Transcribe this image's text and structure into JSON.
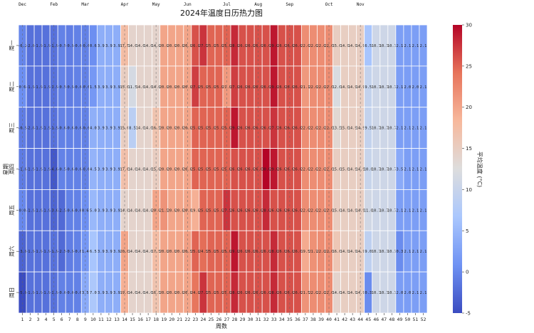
{
  "chart_data": {
    "type": "heatmap",
    "title": "2024年温度日历热力图",
    "xlabel": "周数",
    "ylabel": "星期",
    "colorbar_label": "平均温度 (°C)",
    "colorbar_range": [
      -5,
      30
    ],
    "colorbar_ticks": [
      "-5",
      "0",
      "5",
      "10",
      "15",
      "20",
      "25",
      "30"
    ],
    "colormap": "coolwarm",
    "colormap_stops": [
      "#3b4cc0",
      "#6f92f3",
      "#aac7fd",
      "#dddddd",
      "#f7b89c",
      "#e7745b",
      "#b40426"
    ],
    "weekdays": [
      "周一",
      "周二",
      "周三",
      "周四",
      "周五",
      "周六",
      "周日"
    ],
    "x_ticks": [
      "1",
      "2",
      "3",
      "4",
      "5",
      "6",
      "7",
      "8",
      "9",
      "10",
      "11",
      "12",
      "13",
      "14",
      "15",
      "16",
      "17",
      "18",
      "19",
      "20",
      "21",
      "22",
      "23",
      "24",
      "25",
      "26",
      "27",
      "28",
      "29",
      "30",
      "31",
      "32",
      "33",
      "34",
      "35",
      "36",
      "37",
      "38",
      "39",
      "40",
      "41",
      "42",
      "43",
      "44",
      "45",
      "46",
      "47",
      "48",
      "49",
      "50",
      "51",
      "52"
    ],
    "months": [
      {
        "label": "Dec",
        "week": 1
      },
      {
        "label": "Feb",
        "week": 5
      },
      {
        "label": "Mar",
        "week": 9
      },
      {
        "label": "Apr",
        "week": 14
      },
      {
        "label": "May",
        "week": 18
      },
      {
        "label": "Jun",
        "week": 22
      },
      {
        "label": "Jul",
        "week": 27
      },
      {
        "label": "Aug",
        "week": 31
      },
      {
        "label": "Sep",
        "week": 35
      },
      {
        "label": "Oct",
        "week": 40
      },
      {
        "label": "Nov",
        "week": 44
      }
    ],
    "month_boundary_weeks": [
      1,
      5,
      9,
      14,
      18,
      22,
      27,
      31,
      35,
      40,
      44
    ],
    "values": [
      [
        -0.2,
        -2.0,
        -1.9,
        -1.9,
        -1.9,
        -0.5,
        -0.9,
        -0.6,
        -0.6,
        0.6,
        3.9,
        3.9,
        3.9,
        17.5,
        14.0,
        14.0,
        14.0,
        14.0,
        20.0,
        20.0,
        20.0,
        20.0,
        26.0,
        27.5,
        25.0,
        25.0,
        25.0,
        28.0,
        26.0,
        26.0,
        26.0,
        26.0,
        29.0,
        26.0,
        26.0,
        26.0,
        22.0,
        22.0,
        22.0,
        22.0,
        15.0,
        14.9,
        14.9,
        14.9,
        6.5,
        10.7,
        10.7,
        10.7,
        2.1,
        2.1,
        2.1,
        2.1
      ],
      [
        0.6,
        -1.9,
        -1.9,
        -1.9,
        -1.9,
        -0.5,
        -0.9,
        -0.6,
        -0.6,
        1.5,
        3.9,
        3.9,
        3.9,
        15.0,
        11.5,
        14.0,
        14.0,
        14.0,
        20.0,
        20.0,
        20.0,
        20.0,
        27.0,
        25.0,
        25.0,
        25.0,
        21.0,
        27.0,
        26.0,
        26.0,
        26.0,
        26.0,
        29.0,
        26.0,
        26.0,
        26.0,
        21.1,
        22.0,
        22.0,
        22.0,
        12.0,
        14.9,
        14.9,
        14.9,
        9.5,
        10.7,
        10.7,
        10.7,
        2.1,
        2.0,
        2.0,
        2.1
      ],
      [
        -0.9,
        -2.0,
        -1.9,
        -1.9,
        -1.9,
        -0.6,
        -0.6,
        -0.6,
        -0.6,
        4.0,
        3.9,
        3.9,
        3.9,
        15.0,
        8.5,
        14.0,
        14.0,
        16.5,
        20.0,
        20.0,
        20.0,
        20.0,
        25.0,
        25.0,
        25.0,
        25.0,
        25.0,
        29.0,
        26.0,
        26.0,
        26.0,
        26.0,
        27.5,
        26.0,
        26.0,
        26.0,
        22.0,
        22.0,
        22.0,
        22.0,
        13.5,
        15.0,
        14.9,
        14.9,
        9.5,
        10.7,
        10.7,
        10.7,
        2.1,
        2.1,
        2.1,
        2.1
      ],
      [
        -1.0,
        -1.9,
        -1.9,
        -1.9,
        -4.0,
        -0.5,
        -0.6,
        -0.6,
        -0.6,
        4.5,
        3.9,
        3.9,
        3.9,
        17.0,
        14.0,
        14.0,
        14.0,
        15.0,
        20.0,
        20.0,
        20.0,
        20.0,
        25.0,
        25.0,
        25.0,
        25.0,
        25.0,
        26.0,
        26.0,
        26.0,
        26.0,
        30.0,
        29.0,
        26.0,
        26.0,
        26.0,
        22.0,
        22.0,
        22.0,
        22.0,
        15.0,
        15.0,
        14.9,
        14.9,
        10.0,
        10.7,
        10.7,
        10.7,
        3.5,
        2.1,
        2.1,
        2.1
      ],
      [
        0.0,
        -1.9,
        -1.9,
        -1.9,
        -3.0,
        -2.5,
        -0.6,
        -0.6,
        0.6,
        5.0,
        3.9,
        3.9,
        3.9,
        14.0,
        14.0,
        14.0,
        14.0,
        20.0,
        21.5,
        20.0,
        20.0,
        20.0,
        19.0,
        25.0,
        25.0,
        25.0,
        27.5,
        26.0,
        26.0,
        26.0,
        26.0,
        28.0,
        26.0,
        26.0,
        26.0,
        26.0,
        22.0,
        22.0,
        22.0,
        22.0,
        15.0,
        14.9,
        14.9,
        14.9,
        11.0,
        10.7,
        10.7,
        10.7,
        2.1,
        2.1,
        2.1,
        2.1
      ],
      [
        -3.0,
        -1.9,
        -1.9,
        -1.9,
        -1.9,
        -2.5,
        -0.9,
        -0.6,
        1.4,
        6.5,
        3.9,
        3.9,
        3.9,
        20.0,
        14.0,
        14.0,
        14.0,
        17.5,
        20.0,
        20.0,
        20.0,
        20.5,
        25.0,
        24.5,
        25.0,
        25.0,
        25.0,
        29.0,
        26.0,
        26.0,
        26.0,
        26.0,
        28.0,
        26.0,
        26.0,
        26.0,
        19.5,
        21.7,
        22.0,
        22.0,
        16.0,
        14.9,
        14.9,
        14.9,
        9.0,
        10.7,
        10.7,
        10.7,
        0.3,
        2.1,
        2.1,
        2.1
      ],
      [
        -5.0,
        -1.9,
        -1.9,
        -1.9,
        -1.9,
        -0.6,
        -0.6,
        -0.6,
        3.5,
        7.0,
        3.9,
        3.9,
        3.9,
        19.0,
        14.0,
        14.0,
        14.0,
        16.5,
        20.0,
        20.0,
        20.0,
        20.0,
        24.0,
        27.5,
        25.0,
        25.0,
        25.0,
        28.0,
        26.0,
        26.0,
        26.0,
        26.0,
        28.0,
        26.0,
        26.0,
        26.0,
        21.5,
        22.0,
        22.0,
        22.0,
        14.0,
        14.9,
        14.9,
        14.9,
        0.3,
        10.7,
        10.7,
        10.7,
        2.0,
        2.0,
        2.1,
        2.1
      ]
    ]
  }
}
